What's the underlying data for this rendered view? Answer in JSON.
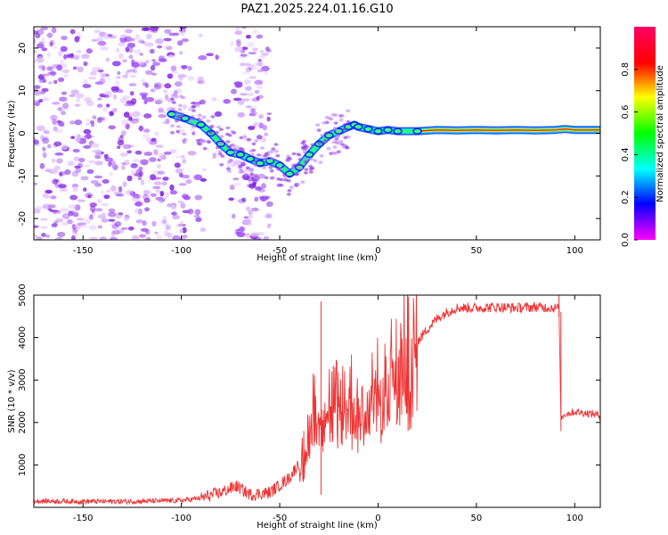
{
  "page": {
    "title": "PAZ1.2025.224.01.16.G10"
  },
  "chart_data": [
    {
      "type": "heatmap",
      "xlabel": "Height of straight line (km)",
      "ylabel": "Frequency (Hz)",
      "xlim": [
        -175,
        113
      ],
      "ylim": [
        -25,
        25
      ],
      "xticks": [
        -150,
        -100,
        -50,
        0,
        50,
        100
      ],
      "yticks": [
        -20,
        -10,
        0,
        10,
        20
      ],
      "colorbar": {
        "label": "Normalized spectral amplitude",
        "range": [
          0,
          1
        ],
        "ticks": [
          0.0,
          0.2,
          0.4,
          0.6,
          0.8
        ],
        "colormap": [
          "#ff00ff",
          "#0000ff",
          "#00ffff",
          "#00ff00",
          "#ffff00",
          "#ff0000",
          "#ff0066"
        ]
      },
      "ridge": {
        "x": [
          -105,
          -98,
          -90,
          -85,
          -80,
          -75,
          -70,
          -65,
          -60,
          -55,
          -50,
          -45,
          -40,
          -35,
          -30,
          -25,
          -20,
          -15,
          -12,
          -10,
          -5,
          0,
          5,
          10,
          20,
          30,
          40,
          50,
          60,
          70,
          80,
          90,
          95,
          100,
          113
        ],
        "y": [
          4.5,
          3.5,
          2.0,
          0.0,
          -2.5,
          -4.5,
          -5.0,
          -6.0,
          -7.0,
          -6.5,
          -7.5,
          -9.5,
          -8.0,
          -5.0,
          -2.5,
          -0.5,
          0.5,
          1.5,
          2.0,
          1.5,
          1.0,
          0.5,
          0.8,
          0.5,
          0.5,
          0.8,
          0.7,
          0.8,
          0.7,
          0.8,
          0.7,
          0.8,
          1.0,
          0.8,
          0.8
        ]
      },
      "noise_region_x": [
        -175,
        -55
      ]
    },
    {
      "type": "line",
      "xlabel": "Height of straight line (km)",
      "ylabel": "SNR (10 * v/v)",
      "xlim": [
        -175,
        113
      ],
      "ylim": [
        0,
        5000
      ],
      "xticks": [
        -150,
        -100,
        -50,
        0,
        50,
        100
      ],
      "yticks": [
        1000,
        2000,
        3000,
        4000,
        5000
      ],
      "line_color": "#ee3333",
      "series": [
        {
          "x": [
            -175,
            -150,
            -125,
            -100,
            -90,
            -80,
            -72,
            -65,
            -55,
            -45,
            -38,
            -34,
            -32,
            -29,
            -25,
            -20,
            -15,
            -10,
            -5,
            0,
            5,
            10,
            15,
            20,
            25,
            30,
            35,
            40,
            50,
            60,
            70,
            80,
            90,
            92,
            93,
            95,
            100,
            110,
            113
          ],
          "values": [
            150,
            140,
            140,
            160,
            220,
            350,
            500,
            300,
            350,
            700,
            1200,
            2000,
            2600,
            2800,
            2500,
            2500,
            2600,
            2700,
            3000,
            3100,
            3200,
            3300,
            3700,
            3900,
            4200,
            4450,
            4600,
            4700,
            4700,
            4720,
            4700,
            4720,
            4700,
            4700,
            2100,
            2200,
            2250,
            2200,
            2150
          ]
        }
      ]
    }
  ]
}
